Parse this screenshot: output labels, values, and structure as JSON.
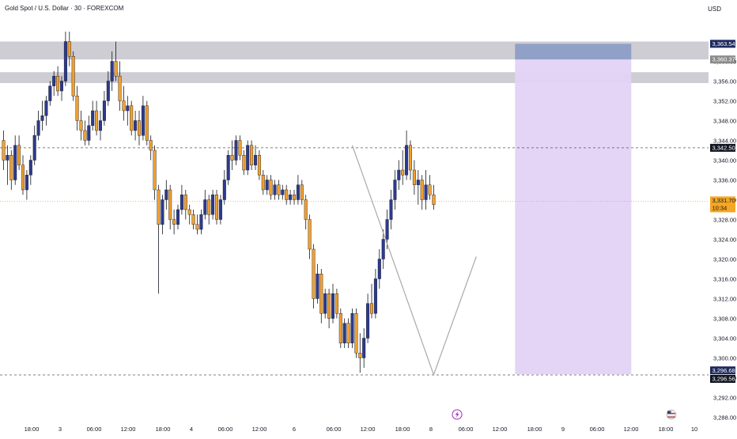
{
  "header": {
    "symbol_title": "Gold Spot / U.S. Dollar · 30 · FOREXCOM",
    "currency": "USD"
  },
  "colors": {
    "up": "#2d3a8c",
    "down": "#f0a030",
    "wick": "#131722",
    "zone_gray": "#c9c8ce",
    "zone_purple": "#e3d3f5",
    "zone_blue": "#8c9dc6",
    "current_price": "#f5a623",
    "grid_text": "#131722"
  },
  "chart_data": {
    "type": "candlestick",
    "ylim": [
      3284,
      3366
    ],
    "y_ticks": [
      3284,
      3288,
      3292,
      3296,
      3300,
      3304,
      3308,
      3312,
      3316,
      3320,
      3324,
      3328,
      3332,
      3336,
      3340,
      3344,
      3348,
      3352,
      3356,
      3360
    ],
    "x_ticks": [
      "18:00",
      "3",
      "06:00",
      "12:00",
      "18:00",
      "4",
      "06:00",
      "12:00",
      "6",
      "06:00",
      "12:00",
      "18:00",
      "8",
      "06:00",
      "12:00",
      "18:00",
      "9",
      "06:00",
      "12:00",
      "18:00",
      "10"
    ],
    "price_labels": [
      {
        "value": 3363.54,
        "text": "3,363.54",
        "style": "navy"
      },
      {
        "value": 3360.37,
        "text": "3,360.37",
        "style": "gray"
      },
      {
        "value": 3342.5,
        "text": "3,342.50",
        "style": "black"
      },
      {
        "value": 3331.7,
        "text": "3,331.70",
        "style": "orange",
        "sub": "10:34"
      },
      {
        "value": 3296.68,
        "text": "3,296.68",
        "style": "navy"
      },
      {
        "value": 3296.56,
        "text": "3,296.56",
        "style": "black"
      }
    ],
    "dashed_levels": [
      3342.5,
      3296.56
    ],
    "current_price": 3331.7,
    "gray_zones": [
      [
        3360.37,
        3364.0
      ],
      [
        3355.6,
        3357.8
      ]
    ],
    "position_zone": {
      "start_bar": 132,
      "end_bar": 162,
      "top": 3363.54,
      "mid": 3360.37,
      "bottom": 3296.68
    },
    "zigzag": [
      [
        90,
        3343.0
      ],
      [
        111,
        3296.6
      ],
      [
        122,
        3320.5
      ]
    ],
    "candles": [
      [
        3344,
        3346,
        3338,
        3340
      ],
      [
        3340,
        3343,
        3335,
        3341
      ],
      [
        3341,
        3342,
        3334,
        3336
      ],
      [
        3336,
        3345,
        3335,
        3343
      ],
      [
        3343,
        3345,
        3338,
        3339
      ],
      [
        3339,
        3341,
        3333,
        3334
      ],
      [
        3334,
        3338,
        3332,
        3337
      ],
      [
        3337,
        3341,
        3335,
        3340
      ],
      [
        3340,
        3347,
        3339,
        3345
      ],
      [
        3345,
        3350,
        3344,
        3348
      ],
      [
        3348,
        3352,
        3346,
        3349
      ],
      [
        3349,
        3353,
        3347,
        3352
      ],
      [
        3352,
        3356,
        3351,
        3355
      ],
      [
        3355,
        3358,
        3353,
        3357
      ],
      [
        3357,
        3359,
        3353,
        3354
      ],
      [
        3354,
        3357,
        3352,
        3356
      ],
      [
        3356,
        3366,
        3355,
        3364
      ],
      [
        3364,
        3366,
        3359,
        3361
      ],
      [
        3361,
        3362,
        3352,
        3353
      ],
      [
        3353,
        3355,
        3346,
        3348
      ],
      [
        3348,
        3350,
        3344,
        3346
      ],
      [
        3346,
        3348,
        3343,
        3344
      ],
      [
        3344,
        3349,
        3343,
        3347
      ],
      [
        3347,
        3352,
        3346,
        3350
      ],
      [
        3350,
        3352,
        3345,
        3346
      ],
      [
        3346,
        3350,
        3344,
        3348
      ],
      [
        3348,
        3354,
        3347,
        3352
      ],
      [
        3352,
        3358,
        3351,
        3356
      ],
      [
        3356,
        3362,
        3354,
        3360
      ],
      [
        3360,
        3364,
        3356,
        3357
      ],
      [
        3357,
        3360,
        3350,
        3352
      ],
      [
        3352,
        3355,
        3348,
        3350
      ],
      [
        3350,
        3353,
        3347,
        3351
      ],
      [
        3351,
        3352,
        3345,
        3346
      ],
      [
        3346,
        3350,
        3344,
        3348
      ],
      [
        3348,
        3350,
        3343,
        3345
      ],
      [
        3345,
        3353,
        3344,
        3351
      ],
      [
        3351,
        3352,
        3343,
        3344
      ],
      [
        3344,
        3345,
        3340,
        3342
      ],
      [
        3342,
        3343,
        3332,
        3334
      ],
      [
        3334,
        3335,
        3313,
        3327
      ],
      [
        3327,
        3333,
        3325,
        3332
      ],
      [
        3332,
        3336,
        3330,
        3334
      ],
      [
        3334,
        3335,
        3326,
        3328
      ],
      [
        3328,
        3330,
        3325,
        3327
      ],
      [
        3327,
        3331,
        3326,
        3330
      ],
      [
        3330,
        3335,
        3329,
        3333
      ],
      [
        3333,
        3334,
        3328,
        3330
      ],
      [
        3330,
        3331,
        3327,
        3329
      ],
      [
        3329,
        3330,
        3326,
        3327
      ],
      [
        3327,
        3329,
        3325,
        3326
      ],
      [
        3326,
        3330,
        3325,
        3329
      ],
      [
        3329,
        3334,
        3328,
        3332
      ],
      [
        3332,
        3333,
        3327,
        3329
      ],
      [
        3329,
        3334,
        3328,
        3333
      ],
      [
        3333,
        3334,
        3327,
        3328
      ],
      [
        3328,
        3333,
        3327,
        3332
      ],
      [
        3332,
        3338,
        3331,
        3336
      ],
      [
        3336,
        3342,
        3335,
        3341
      ],
      [
        3341,
        3344,
        3338,
        3340
      ],
      [
        3340,
        3345,
        3339,
        3344
      ],
      [
        3344,
        3345,
        3340,
        3341
      ],
      [
        3341,
        3342,
        3337,
        3338
      ],
      [
        3338,
        3344,
        3337,
        3343
      ],
      [
        3343,
        3344,
        3338,
        3339
      ],
      [
        3339,
        3343,
        3338,
        3341
      ],
      [
        3341,
        3342,
        3336,
        3337
      ],
      [
        3337,
        3338,
        3333,
        3334
      ],
      [
        3334,
        3337,
        3333,
        3336
      ],
      [
        3336,
        3337,
        3332,
        3333
      ],
      [
        3333,
        3336,
        3332,
        3335
      ],
      [
        3335,
        3336,
        3332,
        3333
      ],
      [
        3333,
        3335,
        3332,
        3334
      ],
      [
        3334,
        3335,
        3331,
        3332
      ],
      [
        3332,
        3334,
        3331,
        3333
      ],
      [
        3333,
        3334,
        3331,
        3332
      ],
      [
        3332,
        3337,
        3331,
        3335
      ],
      [
        3335,
        3336,
        3331,
        3332
      ],
      [
        3332,
        3333,
        3326,
        3328
      ],
      [
        3328,
        3329,
        3320,
        3322
      ],
      [
        3322,
        3323,
        3310,
        3312
      ],
      [
        3312,
        3319,
        3311,
        3317
      ],
      [
        3317,
        3318,
        3307,
        3309
      ],
      [
        3309,
        3314,
        3308,
        3313
      ],
      [
        3313,
        3314,
        3306,
        3308
      ],
      [
        3308,
        3315,
        3307,
        3313
      ],
      [
        3313,
        3314,
        3308,
        3309
      ],
      [
        3309,
        3310,
        3302,
        3303
      ],
      [
        3303,
        3308,
        3302,
        3307
      ],
      [
        3307,
        3308,
        3302,
        3303
      ],
      [
        3303,
        3310,
        3302,
        3309
      ],
      [
        3309,
        3310,
        3300,
        3301
      ],
      [
        3301,
        3305,
        3297,
        3300
      ],
      [
        3300,
        3306,
        3298,
        3304
      ],
      [
        3304,
        3313,
        3303,
        3311
      ],
      [
        3311,
        3315,
        3308,
        3309
      ],
      [
        3309,
        3318,
        3308,
        3316
      ],
      [
        3316,
        3322,
        3314,
        3320
      ],
      [
        3320,
        3326,
        3318,
        3324
      ],
      [
        3324,
        3330,
        3322,
        3328
      ],
      [
        3328,
        3334,
        3326,
        3332
      ],
      [
        3332,
        3338,
        3330,
        3336
      ],
      [
        3336,
        3340,
        3334,
        3338
      ],
      [
        3338,
        3342,
        3335,
        3337
      ],
      [
        3337,
        3346,
        3336,
        3343
      ],
      [
        3343,
        3344,
        3336,
        3338
      ],
      [
        3338,
        3340,
        3333,
        3335
      ],
      [
        3335,
        3338,
        3331,
        3336
      ],
      [
        3336,
        3337,
        3330,
        3332
      ],
      [
        3332,
        3338,
        3330,
        3335
      ],
      [
        3335,
        3337,
        3332,
        3333
      ],
      [
        3333,
        3335,
        3330,
        3331
      ]
    ]
  }
}
